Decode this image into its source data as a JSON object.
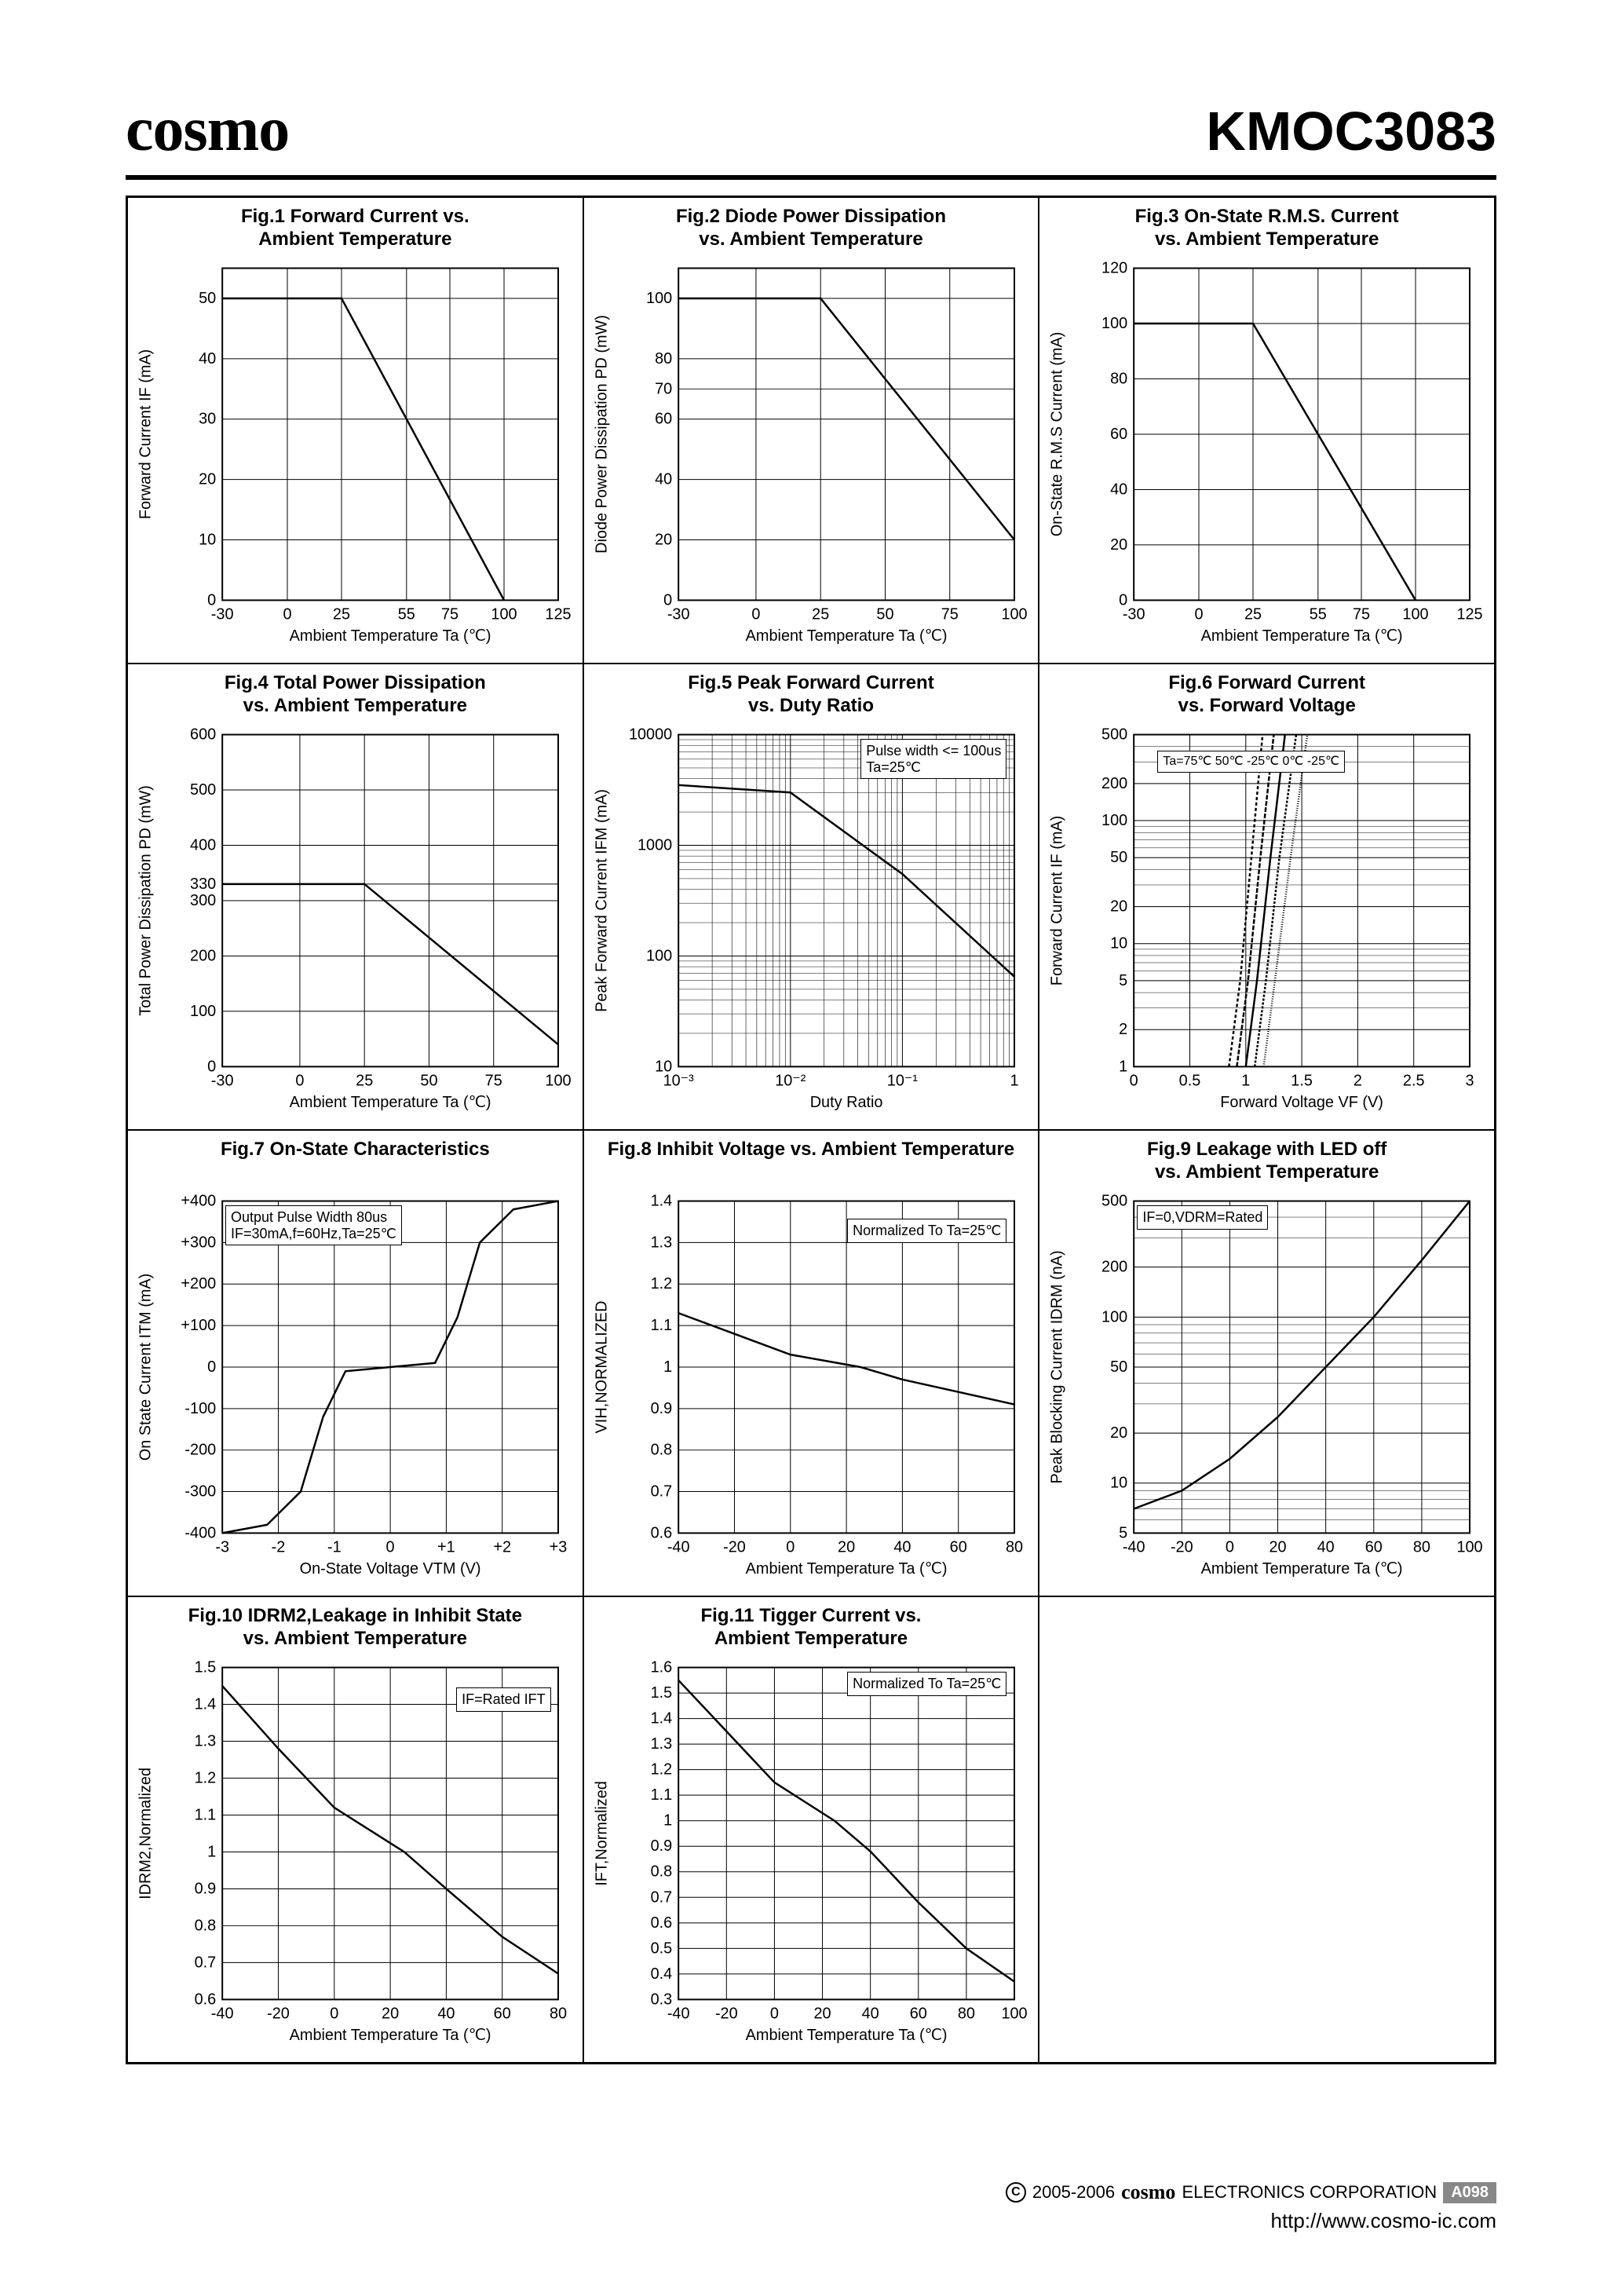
{
  "header": {
    "brand": "cosmo",
    "part": "KMOC3083"
  },
  "footer": {
    "years": "2005-2006",
    "brand": "cosmo",
    "corp": "ELECTRONICS CORPORATION",
    "code": "A098",
    "url": "http://www.cosmo-ic.com"
  },
  "plot_defaults": {
    "stroke": "#000000",
    "grid_stroke": "#000000",
    "line_width": 2.5,
    "tick_font": 20
  },
  "figs": [
    {
      "id": "fig1",
      "title": "Fig.1 Forward Current vs.\nAmbient Temperature",
      "xlabel": "Ambient Temperature Ta (℃)",
      "ylabel": "Forward Current IF (mA)",
      "xticks": [
        -30,
        0,
        25,
        55,
        75,
        100,
        125
      ],
      "yticks": [
        0,
        10,
        20,
        30,
        40,
        50
      ],
      "xlim": [
        -30,
        125
      ],
      "ylim": [
        0,
        55
      ],
      "series": [
        {
          "pts": [
            [
              -30,
              50
            ],
            [
              25,
              50
            ],
            [
              100,
              0
            ]
          ]
        }
      ]
    },
    {
      "id": "fig2",
      "title": "Fig.2 Diode Power Dissipation\nvs. Ambient Temperature",
      "xlabel": "Ambient Temperature Ta (℃)",
      "ylabel": "Diode Power Dissipation PD (mW)",
      "xticks": [
        -30,
        0,
        25,
        50,
        75,
        100
      ],
      "yticks": [
        0,
        20,
        40,
        60,
        70,
        80,
        100
      ],
      "xlim": [
        -30,
        100
      ],
      "ylim": [
        0,
        110
      ],
      "series": [
        {
          "pts": [
            [
              -30,
              100
            ],
            [
              25,
              100
            ],
            [
              100,
              20
            ]
          ]
        }
      ]
    },
    {
      "id": "fig3",
      "title": "Fig.3 On-State R.M.S. Current\nvs. Ambient Temperature",
      "xlabel": "Ambient Temperature Ta (℃)",
      "ylabel": "On-State R.M.S Current (mA)",
      "xticks": [
        -30,
        0,
        25,
        55,
        75,
        100,
        125
      ],
      "yticks": [
        0,
        20,
        40,
        60,
        80,
        100,
        120
      ],
      "xlim": [
        -30,
        125
      ],
      "ylim": [
        0,
        120
      ],
      "series": [
        {
          "pts": [
            [
              -30,
              100
            ],
            [
              25,
              100
            ],
            [
              100,
              0
            ]
          ]
        }
      ]
    },
    {
      "id": "fig4",
      "title": "Fig.4 Total Power Dissipation\nvs. Ambient Temperature",
      "xlabel": "Ambient Temperature Ta (℃)",
      "ylabel": "Total Power Dissipation PD (mW)",
      "xticks": [
        -30,
        0,
        25,
        50,
        75,
        100
      ],
      "yticks": [
        0,
        100,
        200,
        300,
        330,
        400,
        500,
        600
      ],
      "xlim": [
        -30,
        100
      ],
      "ylim": [
        0,
        600
      ],
      "series": [
        {
          "pts": [
            [
              -30,
              330
            ],
            [
              25,
              330
            ],
            [
              100,
              40
            ]
          ]
        }
      ]
    },
    {
      "id": "fig5",
      "title": "Fig.5 Peak Forward Current\nvs. Duty Ratio",
      "xlabel": "Duty Ratio",
      "ylabel": "Peak Forward Current IFM (mA)",
      "xlog": true,
      "ylog": true,
      "xticks_log": [
        "10⁻³",
        "10⁻²",
        "10⁻¹",
        "1"
      ],
      "yticks_log": [
        "10",
        "100",
        "1000",
        "10000"
      ],
      "xlim": [
        0.001,
        1
      ],
      "ylim": [
        10,
        10000
      ],
      "note": "Pulse width <= 100us\nTa=25℃",
      "series": [
        {
          "pts": [
            [
              0.001,
              3500
            ],
            [
              0.01,
              3000
            ],
            [
              0.1,
              550
            ],
            [
              1,
              65
            ]
          ]
        }
      ]
    },
    {
      "id": "fig6",
      "title": "Fig.6 Forward Current\nvs. Forward Voltage",
      "xlabel": "Forward Voltage VF (V)",
      "ylabel": "Forward Current IF (mA)",
      "ylog": true,
      "xticks": [
        0,
        0.5,
        1.0,
        1.5,
        2.0,
        2.5,
        3.0
      ],
      "yticks_log": [
        "1",
        "2",
        "5",
        "10",
        "20",
        "50",
        "100",
        "200",
        "500"
      ],
      "xlim": [
        0,
        3.0
      ],
      "ylim": [
        1,
        500
      ],
      "legend_labels": [
        "Ta=75℃",
        "50℃",
        "-25℃",
        "0℃",
        "-25℃"
      ],
      "series": [
        {
          "pts": [
            [
              0.85,
              1
            ],
            [
              0.95,
              5
            ],
            [
              1.05,
              50
            ],
            [
              1.15,
              500
            ]
          ],
          "dash": "4 3"
        },
        {
          "pts": [
            [
              0.92,
              1
            ],
            [
              1.02,
              5
            ],
            [
              1.13,
              50
            ],
            [
              1.25,
              500
            ]
          ],
          "dash": "6 2"
        },
        {
          "pts": [
            [
              1.0,
              1
            ],
            [
              1.1,
              5
            ],
            [
              1.22,
              50
            ],
            [
              1.35,
              500
            ]
          ]
        },
        {
          "pts": [
            [
              1.08,
              1
            ],
            [
              1.18,
              5
            ],
            [
              1.3,
              50
            ],
            [
              1.45,
              500
            ]
          ],
          "dash": "3 2"
        },
        {
          "pts": [
            [
              1.16,
              1
            ],
            [
              1.26,
              5
            ],
            [
              1.4,
              50
            ],
            [
              1.55,
              500
            ]
          ],
          "dash": "1 2"
        }
      ]
    },
    {
      "id": "fig7",
      "title": "Fig.7 On-State Characteristics",
      "xlabel": "On-State Voltage VTM (V)",
      "ylabel": "On State Current ITM (mA)",
      "xticks": [
        -3,
        -2,
        -1,
        0,
        1,
        2,
        3
      ],
      "xtick_labels": [
        "-3",
        "-2",
        "-1",
        "0",
        "+1",
        "+2",
        "+3"
      ],
      "yticks": [
        -400,
        -300,
        -200,
        -100,
        0,
        100,
        200,
        300,
        400
      ],
      "ytick_labels": [
        "-400",
        "-300",
        "-200",
        "-100",
        "0",
        "+100",
        "+200",
        "+300",
        "+400"
      ],
      "xlim": [
        -3,
        3
      ],
      "ylim": [
        -400,
        400
      ],
      "note": "Output Pulse Width 80us\nIF=30mA,f=60Hz,Ta=25℃",
      "series": [
        {
          "pts": [
            [
              -3,
              -400
            ],
            [
              -2.2,
              -380
            ],
            [
              -1.6,
              -300
            ],
            [
              -1.2,
              -120
            ],
            [
              -0.8,
              -10
            ],
            [
              0,
              0
            ],
            [
              0.8,
              10
            ],
            [
              1.2,
              120
            ],
            [
              1.6,
              300
            ],
            [
              2.2,
              380
            ],
            [
              3,
              400
            ]
          ]
        }
      ]
    },
    {
      "id": "fig8",
      "title": "Fig.8 Inhibit Voltage vs. Ambient Temperature",
      "xlabel": "Ambient Temperature Ta (℃)",
      "ylabel": "VIH,NORMALIZED",
      "xticks": [
        -40,
        -20,
        0,
        20,
        40,
        60,
        80
      ],
      "yticks": [
        0.6,
        0.7,
        0.8,
        0.9,
        1.0,
        1.1,
        1.2,
        1.3,
        1.4
      ],
      "xlim": [
        -40,
        80
      ],
      "ylim": [
        0.6,
        1.4
      ],
      "note": "Normalized To Ta=25℃",
      "series": [
        {
          "pts": [
            [
              -40,
              1.13
            ],
            [
              -20,
              1.08
            ],
            [
              0,
              1.03
            ],
            [
              25,
              1.0
            ],
            [
              40,
              0.97
            ],
            [
              60,
              0.94
            ],
            [
              80,
              0.91
            ]
          ]
        }
      ]
    },
    {
      "id": "fig9",
      "title": "Fig.9 Leakage with LED off\nvs. Ambient Temperature",
      "xlabel": "Ambient Temperature Ta (℃)",
      "ylabel": "Peak Blocking Current IDRM (nA)",
      "ylog": true,
      "xticks": [
        -40,
        -20,
        0,
        20,
        40,
        60,
        80,
        100
      ],
      "yticks_log": [
        "5",
        "10",
        "20",
        "50",
        "100",
        "200",
        "500"
      ],
      "xlim": [
        -40,
        100
      ],
      "ylim": [
        5,
        500
      ],
      "note": "IF=0,VDRM=Rated",
      "series": [
        {
          "pts": [
            [
              -40,
              7
            ],
            [
              -20,
              9
            ],
            [
              0,
              14
            ],
            [
              20,
              25
            ],
            [
              40,
              50
            ],
            [
              60,
              100
            ],
            [
              80,
              220
            ],
            [
              100,
              500
            ]
          ]
        }
      ]
    },
    {
      "id": "fig10",
      "title": "Fig.10 IDRM2,Leakage in Inhibit State\nvs. Ambient Temperature",
      "xlabel": "Ambient Temperature Ta (℃)",
      "ylabel": "IDRM2,Normalized",
      "xticks": [
        -40,
        -20,
        0,
        20,
        40,
        60,
        80
      ],
      "yticks": [
        0.6,
        0.7,
        0.8,
        0.9,
        1.0,
        1.1,
        1.2,
        1.3,
        1.4,
        1.5
      ],
      "xlim": [
        -40,
        80
      ],
      "ylim": [
        0.6,
        1.5
      ],
      "note": "IF=Rated IFT",
      "series": [
        {
          "pts": [
            [
              -40,
              1.45
            ],
            [
              -20,
              1.28
            ],
            [
              0,
              1.12
            ],
            [
              25,
              1.0
            ],
            [
              40,
              0.9
            ],
            [
              60,
              0.77
            ],
            [
              80,
              0.67
            ]
          ]
        }
      ]
    },
    {
      "id": "fig11",
      "title": "Fig.11 Tigger Current vs.\nAmbient Temperature",
      "xlabel": "Ambient Temperature Ta (℃)",
      "ylabel": "IFT,Normalized",
      "xticks": [
        -40,
        -20,
        0,
        20,
        40,
        60,
        80,
        100
      ],
      "yticks": [
        0.3,
        0.4,
        0.5,
        0.6,
        0.7,
        0.8,
        0.9,
        1.0,
        1.1,
        1.2,
        1.3,
        1.4,
        1.5,
        1.6
      ],
      "xlim": [
        -40,
        100
      ],
      "ylim": [
        0.3,
        1.6
      ],
      "note": "Normalized To Ta=25℃",
      "series": [
        {
          "pts": [
            [
              -40,
              1.55
            ],
            [
              -20,
              1.35
            ],
            [
              0,
              1.15
            ],
            [
              25,
              1.0
            ],
            [
              40,
              0.88
            ],
            [
              60,
              0.68
            ],
            [
              80,
              0.5
            ],
            [
              100,
              0.37
            ]
          ]
        }
      ]
    }
  ]
}
